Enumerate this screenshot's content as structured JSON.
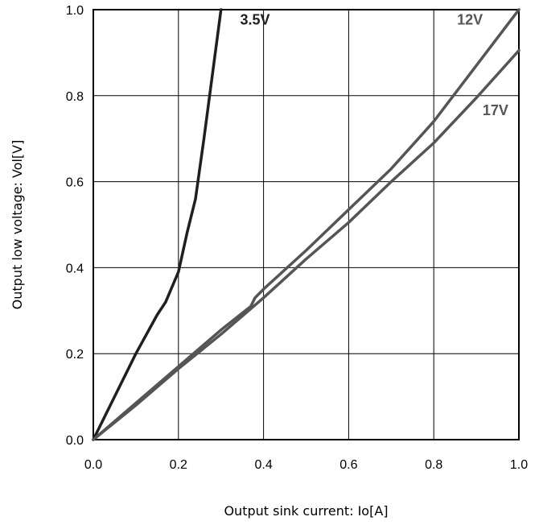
{
  "chart_data": {
    "type": "line",
    "title": "",
    "xlabel": "Output sink current: Io[A]",
    "ylabel": "Output low voltage: Vol[V]",
    "xlim": [
      0.0,
      1.0
    ],
    "ylim": [
      0.0,
      1.0
    ],
    "x_ticks": [
      "0.0",
      "0.2",
      "0.4",
      "0.6",
      "0.8",
      "1.0"
    ],
    "y_ticks": [
      "0.0",
      "0.2",
      "0.4",
      "0.6",
      "0.8",
      "1.0"
    ],
    "grid": true,
    "series": [
      {
        "name": "3.5V",
        "color": "#1f1f1f",
        "points": [
          [
            0.0,
            0.0
          ],
          [
            0.05,
            0.1
          ],
          [
            0.1,
            0.2
          ],
          [
            0.15,
            0.29
          ],
          [
            0.17,
            0.32
          ],
          [
            0.2,
            0.39
          ],
          [
            0.22,
            0.48
          ],
          [
            0.24,
            0.56
          ],
          [
            0.26,
            0.7
          ],
          [
            0.28,
            0.85
          ],
          [
            0.3,
            1.0
          ]
        ]
      },
      {
        "name": "12V",
        "color": "#555555",
        "points": [
          [
            0.0,
            0.0
          ],
          [
            0.1,
            0.085
          ],
          [
            0.2,
            0.17
          ],
          [
            0.3,
            0.255
          ],
          [
            0.37,
            0.31
          ],
          [
            0.38,
            0.33
          ],
          [
            0.4,
            0.35
          ],
          [
            0.5,
            0.44
          ],
          [
            0.6,
            0.535
          ],
          [
            0.7,
            0.63
          ],
          [
            0.8,
            0.74
          ],
          [
            0.9,
            0.87
          ],
          [
            1.0,
            1.0
          ]
        ]
      },
      {
        "name": "17V",
        "color": "#555555",
        "points": [
          [
            0.0,
            0.0
          ],
          [
            0.1,
            0.08
          ],
          [
            0.2,
            0.165
          ],
          [
            0.3,
            0.245
          ],
          [
            0.4,
            0.33
          ],
          [
            0.5,
            0.42
          ],
          [
            0.6,
            0.505
          ],
          [
            0.7,
            0.6
          ],
          [
            0.8,
            0.69
          ],
          [
            0.9,
            0.795
          ],
          [
            1.0,
            0.905
          ]
        ]
      }
    ]
  }
}
